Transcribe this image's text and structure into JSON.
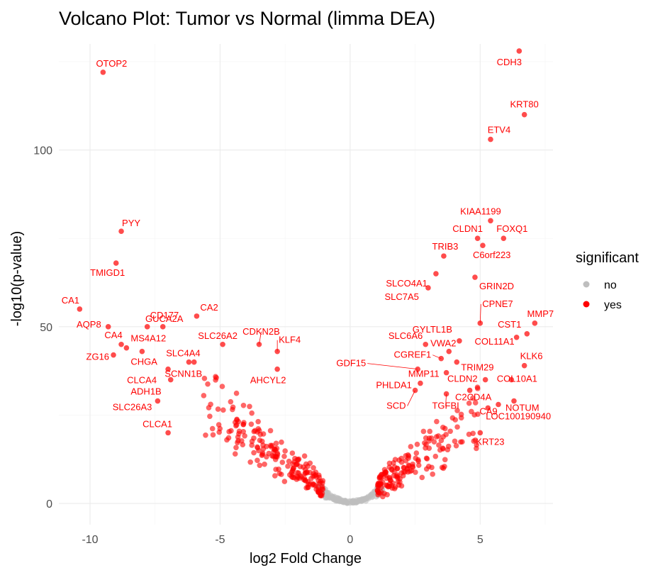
{
  "chart_data": {
    "type": "scatter",
    "title": "Volcano Plot: Tumor vs Normal (limma DEA)",
    "xlabel": "log2 Fold Change",
    "ylabel": "-log10(p-value)",
    "xlim": [
      -11.2,
      7.8
    ],
    "ylim": [
      -6,
      130
    ],
    "x_ticks": [
      -10,
      -5,
      0,
      5
    ],
    "y_ticks": [
      0,
      50,
      100
    ],
    "grid": true,
    "legend": {
      "title": "significant",
      "placement": "right",
      "entries": [
        {
          "label": "no",
          "color": "#bebebe"
        },
        {
          "label": "yes",
          "color": "#ff0000"
        }
      ]
    },
    "series": [
      {
        "name": "no",
        "color": "#bebebe",
        "note_points": "generated"
      },
      {
        "name": "yes",
        "color": "#ff0000",
        "note_points": "generated"
      }
    ],
    "labeled_genes": [
      {
        "label": "CDH3",
        "x": 6.5,
        "y": 128
      },
      {
        "label": "OTOP2",
        "x": -9.5,
        "y": 122
      },
      {
        "label": "KRT80",
        "x": 6.7,
        "y": 110
      },
      {
        "label": "ETV4",
        "x": 5.4,
        "y": 103
      },
      {
        "label": "KIAA1199",
        "x": 5.4,
        "y": 80
      },
      {
        "label": "PYY",
        "x": -8.8,
        "y": 77
      },
      {
        "label": "CLDN1",
        "x": 4.9,
        "y": 75
      },
      {
        "label": "FOXQ1",
        "x": 5.9,
        "y": 75
      },
      {
        "label": "TRIB3",
        "x": 3.6,
        "y": 70
      },
      {
        "label": "C6orf223",
        "x": 5.1,
        "y": 73
      },
      {
        "label": "TMIGD1",
        "x": -9.0,
        "y": 68
      },
      {
        "label": "SLCO4A1",
        "x": 3.3,
        "y": 65
      },
      {
        "label": "GRIN2D",
        "x": 4.8,
        "y": 64
      },
      {
        "label": "SLC7A5",
        "x": 3.0,
        "y": 61
      },
      {
        "label": "CPNE7",
        "x": 5.0,
        "y": 51
      },
      {
        "label": "MMP7",
        "x": 7.1,
        "y": 51
      },
      {
        "label": "CA1",
        "x": -10.4,
        "y": 55
      },
      {
        "label": "CA2",
        "x": -5.9,
        "y": 53
      },
      {
        "label": "AQP8",
        "x": -9.3,
        "y": 50
      },
      {
        "label": "CD177",
        "x": -7.8,
        "y": 50
      },
      {
        "label": "GUCA2A",
        "x": -7.2,
        "y": 50
      },
      {
        "label": "GYLTL1B",
        "x": 4.2,
        "y": 46
      },
      {
        "label": "CST1",
        "x": 6.8,
        "y": 48
      },
      {
        "label": "CDKN2B",
        "x": -3.5,
        "y": 45
      },
      {
        "label": "SLC26A2",
        "x": -4.9,
        "y": 45
      },
      {
        "label": "CA4",
        "x": -8.8,
        "y": 45
      },
      {
        "label": "MS4A12",
        "x": -8.6,
        "y": 44
      },
      {
        "label": "SLC6A6",
        "x": 2.9,
        "y": 45
      },
      {
        "label": "VWA2",
        "x": 3.8,
        "y": 43
      },
      {
        "label": "COL11A1",
        "x": 6.4,
        "y": 47
      },
      {
        "label": "KLF4",
        "x": -2.8,
        "y": 43
      },
      {
        "label": "ZG16",
        "x": -9.1,
        "y": 42
      },
      {
        "label": "CHGA",
        "x": -8.0,
        "y": 43
      },
      {
        "label": "SLC4A4",
        "x": -6.2,
        "y": 40
      },
      {
        "label": "TRIM29",
        "x": 4.1,
        "y": 40
      },
      {
        "label": "CGREF1",
        "x": 3.5,
        "y": 41
      },
      {
        "label": "GDF15",
        "x": 2.6,
        "y": 38
      },
      {
        "label": "MMP11",
        "x": 3.7,
        "y": 37
      },
      {
        "label": "KLK6",
        "x": 6.7,
        "y": 39
      },
      {
        "label": "AHCYL2",
        "x": -2.8,
        "y": 38
      },
      {
        "label": "CLCA4",
        "x": -7.0,
        "y": 38
      },
      {
        "label": "SCNN1B",
        "x": -6.0,
        "y": 40
      },
      {
        "label": "ADH1B",
        "x": -6.9,
        "y": 35
      },
      {
        "label": "CLDN2",
        "x": 5.2,
        "y": 35
      },
      {
        "label": "COL10A1",
        "x": 6.2,
        "y": 35
      },
      {
        "label": "PHLDA1",
        "x": 2.7,
        "y": 34
      },
      {
        "label": "TGFBI",
        "x": 3.7,
        "y": 31
      },
      {
        "label": "SCD",
        "x": 2.5,
        "y": 32
      },
      {
        "label": "C2CD4A",
        "x": 4.6,
        "y": 32
      },
      {
        "label": "CA9",
        "x": 5.7,
        "y": 28
      },
      {
        "label": "NOTUM",
        "x": 6.3,
        "y": 29
      },
      {
        "label": "SLC26A3",
        "x": -7.4,
        "y": 29
      },
      {
        "label": "LOC100190940",
        "x": 5.3,
        "y": 27
      },
      {
        "label": "KRT23",
        "x": 5.0,
        "y": 20
      },
      {
        "label": "CLCA1",
        "x": -7.0,
        "y": 20
      }
    ]
  }
}
